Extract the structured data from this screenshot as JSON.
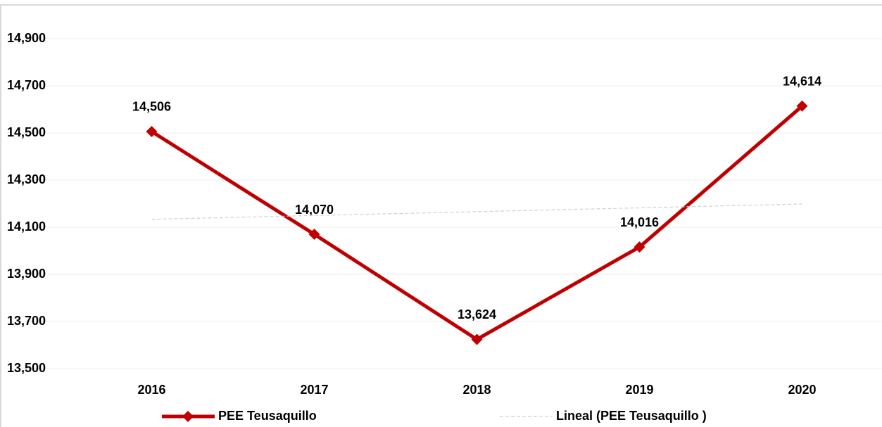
{
  "chart_data": {
    "type": "line",
    "categories": [
      "2016",
      "2017",
      "2018",
      "2019",
      "2020"
    ],
    "series": [
      {
        "name": "PEE Teusaquillo",
        "color": "#c00000",
        "values": [
          14506,
          14070,
          13624,
          14016,
          14614
        ],
        "value_labels": [
          "14,506",
          "14,070",
          "13,624",
          "14,016",
          "14,614"
        ],
        "marker": "diamond"
      },
      {
        "name": "Lineal (PEE Teusaquillo )",
        "color": "#d0d0d0",
        "values": [
          14133.6,
          14149.8,
          14166,
          14182.2,
          14198.4
        ],
        "dashed": true
      }
    ],
    "ylim": [
      13500,
      15000
    ],
    "yticks": [
      {
        "value": 13500,
        "label": "13,500"
      },
      {
        "value": 13700,
        "label": "13,700"
      },
      {
        "value": 13900,
        "label": "13,900"
      },
      {
        "value": 14100,
        "label": "14,100"
      },
      {
        "value": 14300,
        "label": "14,300"
      },
      {
        "value": 14500,
        "label": "14,500"
      },
      {
        "value": 14700,
        "label": "14,700"
      },
      {
        "value": 14900,
        "label": "14,900"
      }
    ],
    "grid": true,
    "legend": "bottom"
  }
}
